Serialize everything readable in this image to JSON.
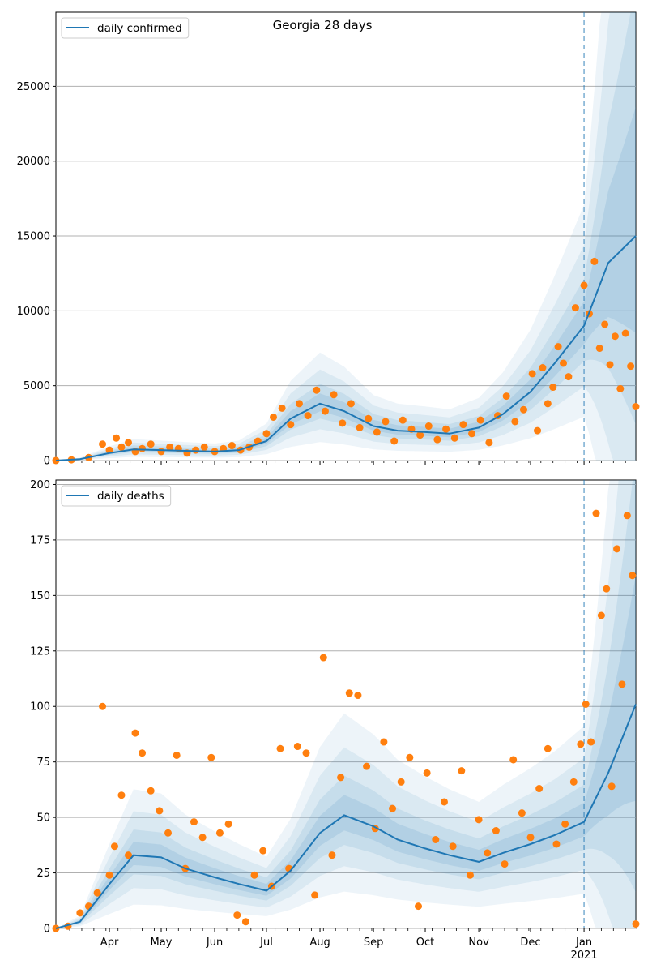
{
  "figure": {
    "title": "Georgia 28 days"
  },
  "colors": {
    "line": "#1f77b4",
    "points": "#ff7f0e",
    "band": "#1f77b4",
    "grid": "#b0b0b0"
  },
  "chart_data": [
    {
      "type": "line",
      "title": "Georgia 28 days",
      "legend": "daily confirmed",
      "legend_position": "upper-left",
      "grid": "horizontal",
      "xlim": [
        "2020-03-01",
        "2021-01-31"
      ],
      "ylim": [
        0,
        30000
      ],
      "yticks": [
        0,
        5000,
        10000,
        15000,
        20000,
        25000
      ],
      "forecast_start": "2021-01-01",
      "series": [
        {
          "name": "daily confirmed",
          "kind": "line",
          "x": [
            "2020-03-01",
            "2020-03-15",
            "2020-04-01",
            "2020-04-15",
            "2020-05-01",
            "2020-05-15",
            "2020-06-01",
            "2020-06-15",
            "2020-07-01",
            "2020-07-15",
            "2020-08-01",
            "2020-08-15",
            "2020-09-01",
            "2020-09-15",
            "2020-10-01",
            "2020-10-15",
            "2020-11-01",
            "2020-11-15",
            "2020-12-01",
            "2020-12-15",
            "2021-01-01",
            "2021-01-15",
            "2021-01-31"
          ],
          "y": [
            0,
            100,
            500,
            750,
            700,
            650,
            600,
            700,
            1300,
            2800,
            3800,
            3300,
            2300,
            2000,
            1900,
            1800,
            2200,
            3100,
            4600,
            6500,
            9000,
            13200,
            15000
          ]
        }
      ],
      "observed": {
        "x": [
          "2020-03-01",
          "2020-03-10",
          "2020-03-20",
          "2020-03-28",
          "2020-04-01",
          "2020-04-05",
          "2020-04-08",
          "2020-04-12",
          "2020-04-16",
          "2020-04-20",
          "2020-04-25",
          "2020-05-01",
          "2020-05-06",
          "2020-05-11",
          "2020-05-16",
          "2020-05-21",
          "2020-05-26",
          "2020-06-01",
          "2020-06-06",
          "2020-06-11",
          "2020-06-16",
          "2020-06-21",
          "2020-06-26",
          "2020-07-01",
          "2020-07-05",
          "2020-07-10",
          "2020-07-15",
          "2020-07-20",
          "2020-07-25",
          "2020-07-30",
          "2020-08-04",
          "2020-08-09",
          "2020-08-14",
          "2020-08-19",
          "2020-08-24",
          "2020-08-29",
          "2020-09-03",
          "2020-09-08",
          "2020-09-13",
          "2020-09-18",
          "2020-09-23",
          "2020-09-28",
          "2020-10-03",
          "2020-10-08",
          "2020-10-13",
          "2020-10-18",
          "2020-10-23",
          "2020-10-28",
          "2020-11-02",
          "2020-11-07",
          "2020-11-12",
          "2020-11-17",
          "2020-11-22",
          "2020-11-27",
          "2020-12-02",
          "2020-12-05",
          "2020-12-08",
          "2020-12-11",
          "2020-12-14",
          "2020-12-17",
          "2020-12-20",
          "2020-12-23",
          "2020-12-27",
          "2021-01-01",
          "2021-01-04",
          "2021-01-07",
          "2021-01-10",
          "2021-01-13",
          "2021-01-16",
          "2021-01-19",
          "2021-01-22",
          "2021-01-25",
          "2021-01-28",
          "2021-01-31"
        ],
        "y": [
          0,
          50,
          200,
          1100,
          700,
          1500,
          900,
          1200,
          600,
          800,
          1100,
          600,
          900,
          800,
          500,
          700,
          900,
          600,
          800,
          1000,
          700,
          900,
          1300,
          1800,
          2900,
          3500,
          2400,
          3800,
          3000,
          4700,
          3300,
          4400,
          2500,
          3800,
          2200,
          2800,
          1900,
          2600,
          1300,
          2700,
          2100,
          1700,
          2300,
          1400,
          2100,
          1500,
          2400,
          1800,
          2700,
          1200,
          3000,
          4300,
          2600,
          3400,
          5800,
          2000,
          6200,
          3800,
          4900,
          7600,
          6500,
          5600,
          10200,
          11700,
          9800,
          13300,
          7500,
          9100,
          6400,
          8300,
          4800,
          8500,
          6300,
          3600
        ]
      }
    },
    {
      "type": "line",
      "legend": "daily deaths",
      "legend_position": "upper-left",
      "grid": "horizontal",
      "xlim": [
        "2020-03-01",
        "2021-01-31"
      ],
      "ylim": [
        0,
        202
      ],
      "yticks": [
        0,
        25,
        50,
        75,
        100,
        125,
        150,
        175,
        200
      ],
      "xticks": [
        "Apr",
        "May",
        "Jun",
        "Jul",
        "Aug",
        "Sep",
        "Oct",
        "Nov",
        "Dec",
        "Jan"
      ],
      "xticks_secondary": [
        "2021"
      ],
      "forecast_start": "2021-01-01",
      "series": [
        {
          "name": "daily deaths",
          "kind": "line",
          "x": [
            "2020-03-01",
            "2020-03-15",
            "2020-04-01",
            "2020-04-15",
            "2020-05-01",
            "2020-05-15",
            "2020-06-01",
            "2020-06-15",
            "2020-07-01",
            "2020-07-15",
            "2020-08-01",
            "2020-08-15",
            "2020-09-01",
            "2020-09-15",
            "2020-10-01",
            "2020-10-15",
            "2020-11-01",
            "2020-11-15",
            "2020-12-01",
            "2020-12-15",
            "2021-01-01",
            "2021-01-15",
            "2021-01-31"
          ],
          "y": [
            0,
            3,
            20,
            33,
            32,
            27,
            23,
            20,
            17,
            26,
            43,
            51,
            46,
            40,
            36,
            33,
            30,
            34,
            38,
            42,
            48,
            70,
            101
          ]
        }
      ],
      "observed": {
        "x": [
          "2020-03-01",
          "2020-03-08",
          "2020-03-15",
          "2020-03-20",
          "2020-03-25",
          "2020-03-28",
          "2020-04-01",
          "2020-04-04",
          "2020-04-08",
          "2020-04-12",
          "2020-04-16",
          "2020-04-20",
          "2020-04-25",
          "2020-04-30",
          "2020-05-05",
          "2020-05-10",
          "2020-05-15",
          "2020-05-20",
          "2020-05-25",
          "2020-05-30",
          "2020-06-04",
          "2020-06-09",
          "2020-06-14",
          "2020-06-19",
          "2020-06-24",
          "2020-06-29",
          "2020-07-04",
          "2020-07-09",
          "2020-07-14",
          "2020-07-19",
          "2020-07-24",
          "2020-07-29",
          "2020-08-03",
          "2020-08-08",
          "2020-08-13",
          "2020-08-18",
          "2020-08-23",
          "2020-08-28",
          "2020-09-02",
          "2020-09-07",
          "2020-09-12",
          "2020-09-17",
          "2020-09-22",
          "2020-09-27",
          "2020-10-02",
          "2020-10-07",
          "2020-10-12",
          "2020-10-17",
          "2020-10-22",
          "2020-10-27",
          "2020-11-01",
          "2020-11-06",
          "2020-11-11",
          "2020-11-16",
          "2020-11-21",
          "2020-11-26",
          "2020-12-01",
          "2020-12-06",
          "2020-12-11",
          "2020-12-16",
          "2020-12-21",
          "2020-12-26",
          "2020-12-30",
          "2021-01-02",
          "2021-01-05",
          "2021-01-08",
          "2021-01-11",
          "2021-01-14",
          "2021-01-17",
          "2021-01-20",
          "2021-01-23",
          "2021-01-26",
          "2021-01-29",
          "2021-01-31"
        ],
        "y": [
          0,
          1,
          7,
          10,
          16,
          100,
          24,
          37,
          60,
          33,
          88,
          79,
          62,
          53,
          43,
          78,
          27,
          48,
          41,
          77,
          43,
          47,
          6,
          3,
          24,
          35,
          19,
          81,
          27,
          82,
          79,
          15,
          122,
          33,
          68,
          106,
          105,
          73,
          45,
          84,
          54,
          66,
          77,
          10,
          70,
          40,
          57,
          37,
          71,
          24,
          49,
          34,
          44,
          29,
          76,
          52,
          41,
          63,
          81,
          38,
          47,
          66,
          83,
          101,
          84,
          187,
          141,
          153,
          64,
          171,
          110,
          186,
          159,
          2
        ]
      }
    }
  ]
}
